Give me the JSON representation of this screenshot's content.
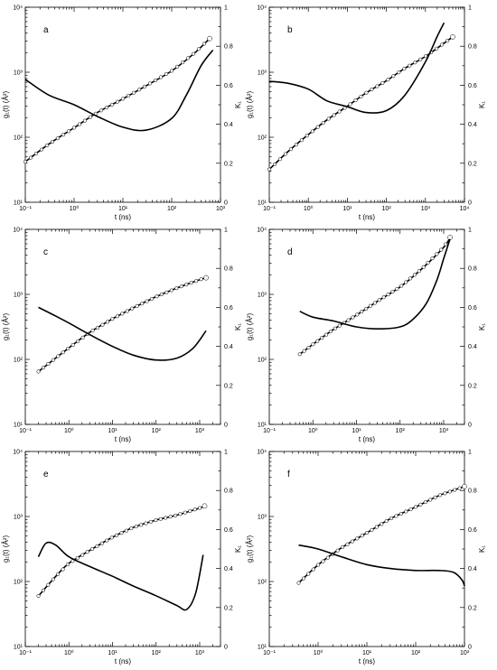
{
  "chart_data": [
    {
      "type": "line",
      "title": "a",
      "xlabel": "t (ns)",
      "ylabel_left": "g₁(t) (Å²)",
      "ylabel_right": "K₁",
      "x_scale": "log",
      "y_left_scale": "log",
      "xlim": [
        0.1,
        1000
      ],
      "ylim_left": [
        10,
        10000
      ],
      "ylim_right": [
        0,
        1
      ],
      "x_ticks": [
        "10⁻¹",
        "10⁰",
        "10¹",
        "10²",
        "10³"
      ],
      "y_left_ticks": [
        "10¹",
        "10²",
        "10³",
        "10⁴"
      ],
      "y_right_ticks": [
        "0",
        "0.2",
        "0.4",
        "0.6",
        "0.8",
        "1"
      ],
      "series": [
        {
          "axis": "left",
          "markers": true,
          "x": [
            0.1,
            0.3,
            1,
            3,
            10,
            30,
            100,
            300,
            600
          ],
          "y": [
            42,
            78,
            140,
            240,
            390,
            620,
            1050,
            2000,
            3300
          ]
        },
        {
          "axis": "right",
          "markers": false,
          "x": [
            0.1,
            0.3,
            1,
            3,
            10,
            30,
            100,
            200,
            400,
            700
          ],
          "y": [
            0.63,
            0.55,
            0.5,
            0.44,
            0.385,
            0.37,
            0.43,
            0.55,
            0.7,
            0.78
          ]
        }
      ]
    },
    {
      "type": "line",
      "title": "b",
      "xlabel": "t (ns)",
      "ylabel_left": "g₁(t) (Å²)",
      "ylabel_right": "K₁",
      "x_scale": "log",
      "y_left_scale": "log",
      "xlim": [
        0.1,
        10000
      ],
      "ylim_left": [
        10,
        10000
      ],
      "ylim_right": [
        0,
        1
      ],
      "x_ticks": [
        "10⁻¹",
        "10⁰",
        "10¹",
        "10²",
        "10³",
        "10⁴"
      ],
      "y_left_ticks": [
        "10¹",
        "10²",
        "10³",
        "10⁴"
      ],
      "y_right_ticks": [
        "0",
        "0.2",
        "0.4",
        "0.6",
        "0.8",
        "1"
      ],
      "series": [
        {
          "axis": "left",
          "markers": true,
          "x": [
            0.1,
            0.3,
            1,
            3,
            10,
            30,
            100,
            300,
            1000,
            3000,
            5000
          ],
          "y": [
            32,
            60,
            110,
            185,
            300,
            480,
            740,
            1150,
            1750,
            2800,
            3500
          ]
        },
        {
          "axis": "right",
          "markers": false,
          "x": [
            0.1,
            0.3,
            1,
            3,
            10,
            30,
            100,
            300,
            1000,
            2000,
            3000
          ],
          "y": [
            0.62,
            0.61,
            0.58,
            0.52,
            0.49,
            0.46,
            0.47,
            0.55,
            0.72,
            0.85,
            0.92
          ]
        }
      ]
    },
    {
      "type": "line",
      "title": "c",
      "xlabel": "t (ns)",
      "ylabel_left": "g₁(t) (Å²)",
      "ylabel_right": "K₁",
      "x_scale": "log",
      "y_left_scale": "log",
      "xlim": [
        0.1,
        3000
      ],
      "ylim_left": [
        10,
        10000
      ],
      "ylim_right": [
        0,
        1
      ],
      "x_ticks": [
        "10⁻¹",
        "10⁰",
        "10¹",
        "10²",
        "10³"
      ],
      "y_left_ticks": [
        "10¹",
        "10²",
        "10³",
        "10⁴"
      ],
      "y_right_ticks": [
        "0",
        "0.2",
        "0.4",
        "0.6",
        "0.8",
        "1"
      ],
      "series": [
        {
          "axis": "left",
          "markers": true,
          "x": [
            0.2,
            0.5,
            1,
            3,
            10,
            30,
            100,
            300,
            1000,
            1400
          ],
          "y": [
            65,
            105,
            150,
            260,
            420,
            620,
            920,
            1250,
            1680,
            1800
          ]
        },
        {
          "axis": "right",
          "markers": false,
          "x": [
            0.2,
            0.5,
            1,
            3,
            10,
            30,
            100,
            300,
            700,
            1400
          ],
          "y": [
            0.6,
            0.555,
            0.52,
            0.46,
            0.4,
            0.355,
            0.33,
            0.34,
            0.39,
            0.48
          ]
        }
      ]
    },
    {
      "type": "line",
      "title": "d",
      "xlabel": "t (ns)",
      "ylabel_left": "g₁(t) (Å²)",
      "ylabel_right": "K₁",
      "x_scale": "log",
      "y_left_scale": "log",
      "xlim": [
        0.1,
        3000
      ],
      "ylim_left": [
        10,
        10000
      ],
      "ylim_right": [
        0,
        1
      ],
      "x_ticks": [
        "10⁻¹",
        "10⁰",
        "10¹",
        "10²",
        "10³"
      ],
      "y_left_ticks": [
        "10¹",
        "10²",
        "10³",
        "10⁴"
      ],
      "y_right_ticks": [
        "0",
        "0.2",
        "0.4",
        "0.6",
        "0.8",
        "1"
      ],
      "series": [
        {
          "axis": "left",
          "markers": true,
          "x": [
            0.5,
            1,
            3,
            10,
            30,
            100,
            300,
            1000,
            1400
          ],
          "y": [
            120,
            170,
            290,
            480,
            780,
            1300,
            2400,
            5300,
            7500
          ]
        },
        {
          "axis": "right",
          "markers": false,
          "x": [
            0.5,
            1,
            3,
            10,
            30,
            100,
            200,
            400,
            700,
            1000,
            1400
          ],
          "y": [
            0.58,
            0.55,
            0.53,
            0.5,
            0.49,
            0.5,
            0.54,
            0.62,
            0.74,
            0.85,
            0.95
          ]
        }
      ]
    },
    {
      "type": "line",
      "title": "e",
      "xlabel": "t (ns)",
      "ylabel_left": "g₁(t) (Å²)",
      "ylabel_right": "K₁",
      "x_scale": "log",
      "y_left_scale": "log",
      "xlim": [
        0.1,
        3000
      ],
      "ylim_left": [
        10,
        10000
      ],
      "ylim_right": [
        0,
        1
      ],
      "x_ticks": [
        "10⁻¹",
        "10⁰",
        "10¹",
        "10²",
        "10³"
      ],
      "y_left_ticks": [
        "10¹",
        "10²",
        "10³",
        "10⁴"
      ],
      "y_right_ticks": [
        "0",
        "0.2",
        "0.4",
        "0.6",
        "0.8",
        "1"
      ],
      "series": [
        {
          "axis": "left",
          "markers": true,
          "x": [
            0.2,
            0.5,
            1,
            3,
            10,
            30,
            100,
            300,
            1000,
            1300
          ],
          "y": [
            60,
            120,
            190,
            300,
            480,
            680,
            880,
            1050,
            1350,
            1450
          ]
        },
        {
          "axis": "right",
          "markers": false,
          "x": [
            0.2,
            0.3,
            0.5,
            1,
            3,
            10,
            30,
            100,
            300,
            500,
            800,
            1200
          ],
          "y": [
            0.46,
            0.53,
            0.52,
            0.46,
            0.41,
            0.36,
            0.31,
            0.26,
            0.21,
            0.19,
            0.27,
            0.47
          ]
        }
      ]
    },
    {
      "type": "line",
      "title": "f",
      "xlabel": "t (ns)",
      "ylabel_left": "g₁(t) (Å²)",
      "ylabel_right": "K₁",
      "x_scale": "log",
      "y_left_scale": "log",
      "xlim": [
        0.1,
        1000
      ],
      "ylim_left": [
        10,
        10000
      ],
      "ylim_right": [
        0,
        1
      ],
      "x_ticks": [
        "10⁻¹",
        "10⁰",
        "10¹",
        "10²",
        "10³"
      ],
      "y_left_ticks": [
        "10¹",
        "10²",
        "10³",
        "10⁴"
      ],
      "y_right_ticks": [
        "0",
        "0.2",
        "0.4",
        "0.6",
        "0.8",
        "1"
      ],
      "series": [
        {
          "axis": "left",
          "markers": true,
          "x": [
            0.4,
            1,
            3,
            10,
            30,
            100,
            300,
            1000
          ],
          "y": [
            95,
            180,
            330,
            560,
            920,
            1400,
            2100,
            2900
          ]
        },
        {
          "axis": "right",
          "markers": false,
          "x": [
            0.4,
            1,
            3,
            10,
            30,
            100,
            300,
            600,
            900,
            1000
          ],
          "y": [
            0.52,
            0.5,
            0.46,
            0.42,
            0.4,
            0.39,
            0.39,
            0.38,
            0.34,
            0.31
          ]
        }
      ]
    }
  ]
}
